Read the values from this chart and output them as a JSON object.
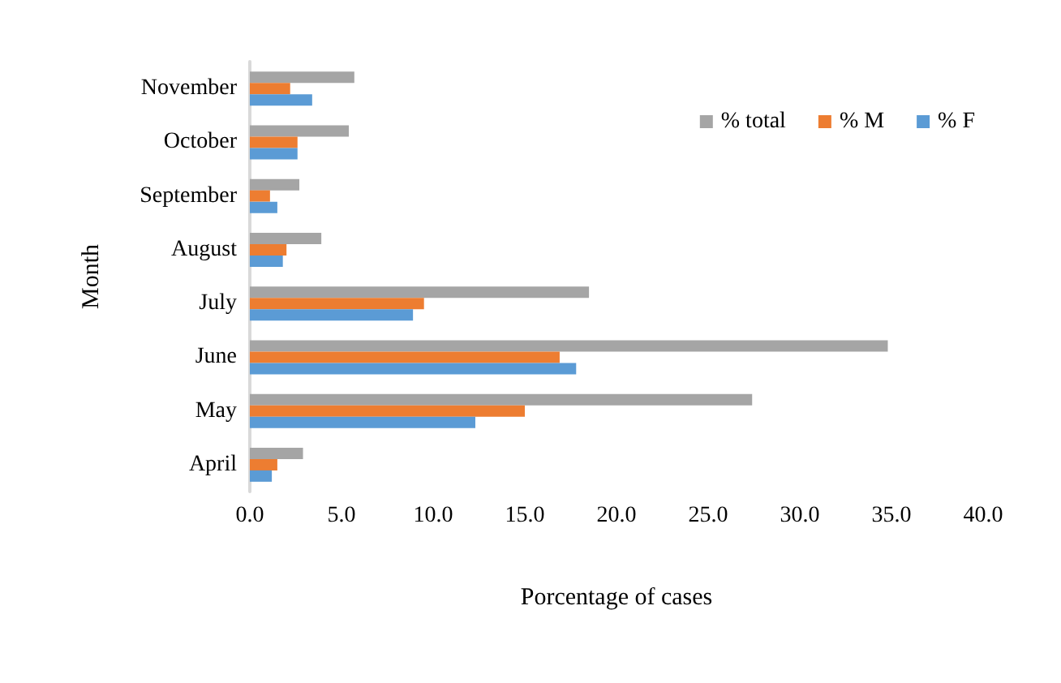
{
  "chart_data": {
    "type": "bar",
    "orientation": "horizontal",
    "xlabel": "Porcentage of cases",
    "ylabel": "Month",
    "categories": [
      "November",
      "October",
      "September",
      "August",
      "July",
      "June",
      "May",
      "April"
    ],
    "series": [
      {
        "name": "% total",
        "color": "#a5a5a5",
        "values": [
          5.7,
          5.4,
          2.7,
          3.9,
          18.5,
          34.8,
          27.4,
          2.9
        ]
      },
      {
        "name": "% M",
        "color": "#ed7d31",
        "values": [
          2.2,
          2.6,
          1.1,
          2.0,
          9.5,
          16.9,
          15.0,
          1.5
        ]
      },
      {
        "name": "% F",
        "color": "#5b9bd5",
        "values": [
          3.4,
          2.6,
          1.5,
          1.8,
          8.9,
          17.8,
          12.3,
          1.2
        ]
      }
    ],
    "xlim": [
      0,
      40
    ],
    "xticks": [
      {
        "value": 0,
        "label": "0.0"
      },
      {
        "value": 5,
        "label": "5.0"
      },
      {
        "value": 10,
        "label": "10.0"
      },
      {
        "value": 15,
        "label": "15.0"
      },
      {
        "value": 20,
        "label": "20.0"
      },
      {
        "value": 25,
        "label": "25.0"
      },
      {
        "value": 30,
        "label": "30.0"
      },
      {
        "value": 35,
        "label": "35.0"
      },
      {
        "value": 40,
        "label": "40.0"
      }
    ],
    "grid": false,
    "legend": "top right"
  }
}
